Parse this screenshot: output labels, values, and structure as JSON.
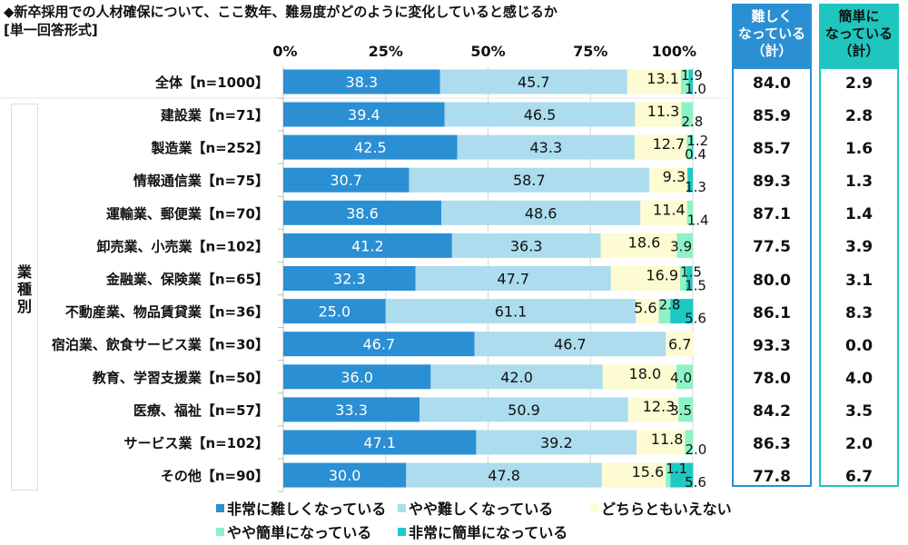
{
  "header": {
    "title": "◆新卒採用での人材確保について、ここ数年、難易度がどのように変化していると感じるか",
    "subtitle": "[単一回答形式]"
  },
  "group_label": "業種別",
  "summary": {
    "hard_header": [
      "難しく",
      "なっている",
      "（計）"
    ],
    "easy_header": [
      "簡単に",
      "なっている",
      "（計）"
    ],
    "hard_values": [
      "84.0",
      "85.9",
      "85.7",
      "89.3",
      "87.1",
      "77.5",
      "80.0",
      "86.1",
      "93.3",
      "78.0",
      "84.2",
      "86.3",
      "77.8"
    ],
    "easy_values": [
      "2.9",
      "2.8",
      "1.6",
      "1.3",
      "1.4",
      "3.9",
      "3.1",
      "8.3",
      "0.0",
      "4.0",
      "3.5",
      "2.0",
      "6.7"
    ]
  },
  "colors": {
    "very_hard": "#2b8fd3",
    "somewhat_hard": "#acdcee",
    "neither": "#fdfbd1",
    "somewhat_easy": "#8ef2c6",
    "very_easy": "#1ec9c3"
  },
  "chart_data": {
    "type": "bar",
    "orientation": "horizontal",
    "stacked": true,
    "title": "◆新卒採用での人材確保について、ここ数年、難易度がどのように変化していると感じるか",
    "xlim": [
      0,
      100
    ],
    "ticks": [
      "0%",
      "25%",
      "50%",
      "75%",
      "100%"
    ],
    "tick_values": [
      0,
      25,
      50,
      75,
      100
    ],
    "grid": true,
    "legend_position": "bottom",
    "categories": [
      "全体【n=1000】",
      "建設業【n=71】",
      "製造業【n=252】",
      "情報通信業【n=75】",
      "運輸業、郵便業【n=70】",
      "卸売業、小売業【n=102】",
      "金融業、保険業【n=65】",
      "不動産業、物品賃貸業【n=36】",
      "宿泊業、飲食サービス業【n=30】",
      "教育、学習支援業【n=50】",
      "医療、福祉【n=57】",
      "サービス業【n=102】",
      "その他【n=90】"
    ],
    "series": [
      {
        "name": "非常に難しくなっている",
        "values": [
          38.3,
          39.4,
          42.5,
          30.7,
          38.6,
          41.2,
          32.3,
          25.0,
          46.7,
          36.0,
          33.3,
          47.1,
          30.0
        ]
      },
      {
        "name": "やや難しくなっている",
        "values": [
          45.7,
          46.5,
          43.3,
          58.7,
          48.6,
          36.3,
          47.7,
          61.1,
          46.7,
          42.0,
          50.9,
          39.2,
          47.8
        ]
      },
      {
        "name": "どちらともいえない",
        "values": [
          13.1,
          11.3,
          12.7,
          9.3,
          11.4,
          18.6,
          16.9,
          5.6,
          6.7,
          18.0,
          12.3,
          11.8,
          15.6
        ]
      },
      {
        "name": "やや簡単になっている",
        "values": [
          1.9,
          2.8,
          1.2,
          0.0,
          1.4,
          3.9,
          1.5,
          2.8,
          0.0,
          4.0,
          3.5,
          2.0,
          1.1
        ]
      },
      {
        "name": "非常に簡単になっている",
        "values": [
          1.0,
          0.0,
          0.4,
          1.3,
          0.0,
          0.0,
          1.5,
          5.6,
          0.0,
          0.0,
          0.0,
          0.0,
          5.6
        ]
      }
    ],
    "data_labels": [
      [
        "38.3",
        "45.7",
        "13.1",
        "1.9",
        "1.0"
      ],
      [
        "39.4",
        "46.5",
        "11.3",
        "2.8",
        ""
      ],
      [
        "42.5",
        "43.3",
        "12.7",
        "1.2",
        "0.4"
      ],
      [
        "30.7",
        "58.7",
        "9.3",
        "",
        "1.3"
      ],
      [
        "38.6",
        "48.6",
        "11.4",
        "1.4",
        ""
      ],
      [
        "41.2",
        "36.3",
        "18.6",
        "3.9",
        ""
      ],
      [
        "32.3",
        "47.7",
        "16.9",
        "1.5",
        "1.5"
      ],
      [
        "25.0",
        "61.1",
        "5.6",
        "2.8",
        "5.6"
      ],
      [
        "46.7",
        "46.7",
        "6.7",
        "",
        ""
      ],
      [
        "36.0",
        "42.0",
        "18.0",
        "4.0",
        ""
      ],
      [
        "33.3",
        "50.9",
        "12.3",
        "3.5",
        ""
      ],
      [
        "47.1",
        "39.2",
        "11.8",
        "2.0",
        ""
      ],
      [
        "30.0",
        "47.8",
        "15.6",
        "1.1",
        "5.6"
      ]
    ]
  }
}
